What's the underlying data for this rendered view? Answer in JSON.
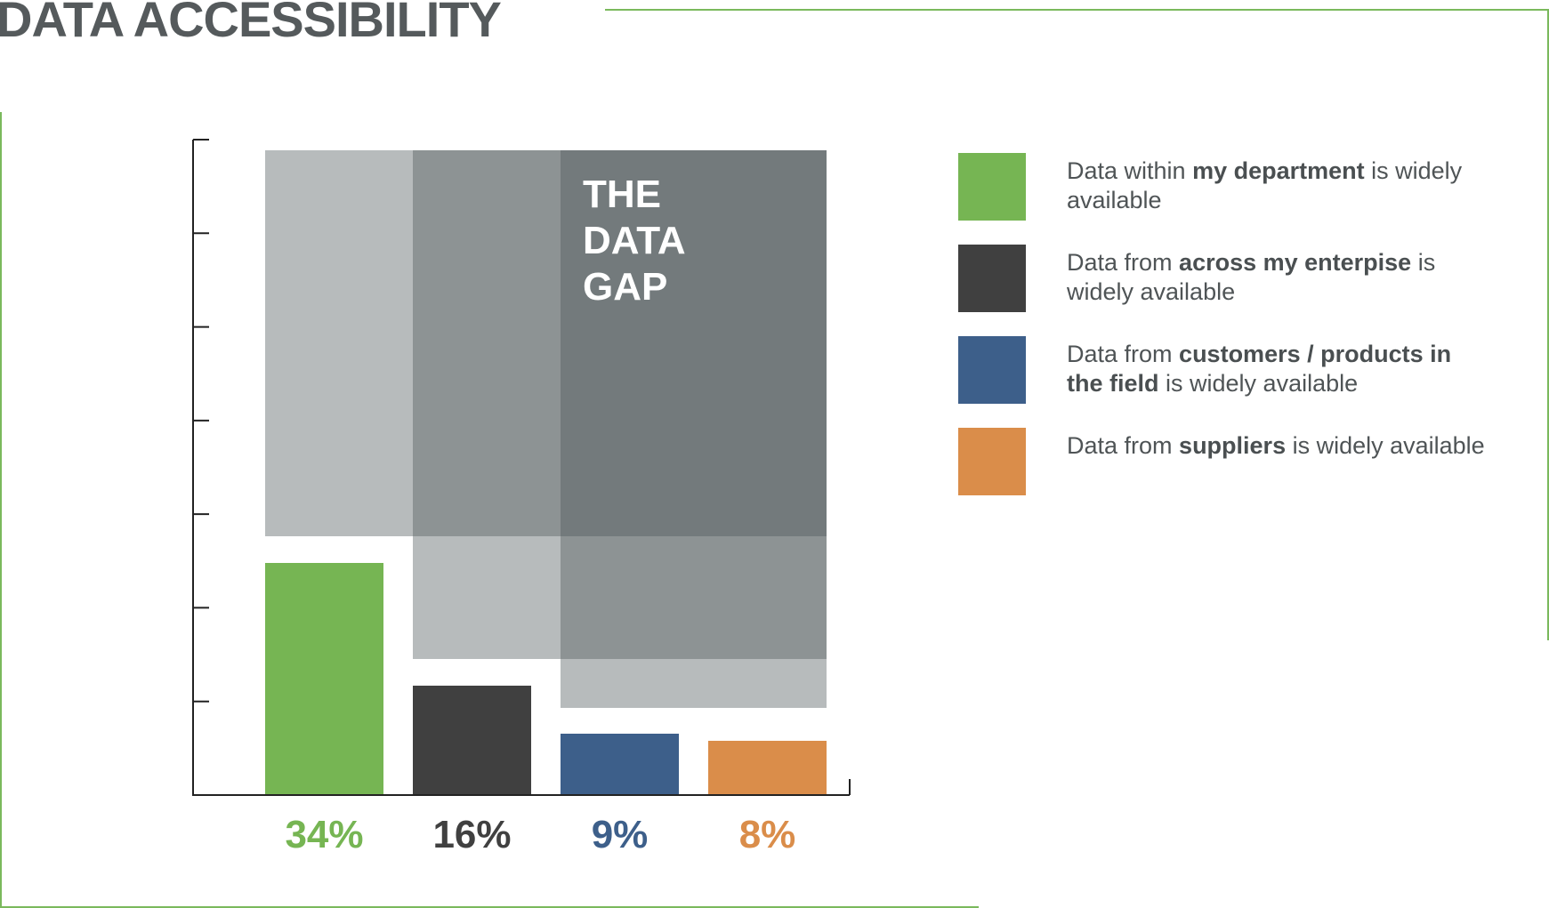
{
  "page": {
    "title": "DATA ACCESSIBILITY"
  },
  "colors": {
    "frame": "#7ab95c",
    "axis": "#222222",
    "gap_light": "#b7bbbc",
    "gap_mid": "#8d9394",
    "gap_dark": "#737a7c",
    "gap_text": "#ffffff"
  },
  "chart_data": {
    "type": "bar",
    "title": "DATA ACCESSIBILITY",
    "annotation": [
      "THE",
      "DATA",
      "GAP"
    ],
    "xlabel": "",
    "ylabel": "",
    "ylim": [
      0,
      100
    ],
    "tick_count": 7,
    "grid": false,
    "legend_position": "right",
    "categories": [
      "34%",
      "16%",
      "9%",
      "8%"
    ],
    "values": [
      34,
      16,
      9,
      8
    ],
    "value_labels": [
      "34%",
      "16%",
      "9%",
      "8%"
    ],
    "colors": [
      "#76b553",
      "#404040",
      "#3d5f8a",
      "#da8d4a"
    ],
    "series_descriptions": [
      {
        "prefix": "Data within ",
        "bold": "my department",
        "suffix": " is widely available"
      },
      {
        "prefix": "Data from ",
        "bold": "across my enterpise",
        "suffix": " is widely available"
      },
      {
        "prefix": "Data from ",
        "bold": "customers / products in the field",
        "suffix": " is widely available"
      },
      {
        "prefix": "Data from ",
        "bold": "suppliers",
        "suffix": " is widely available"
      }
    ]
  }
}
